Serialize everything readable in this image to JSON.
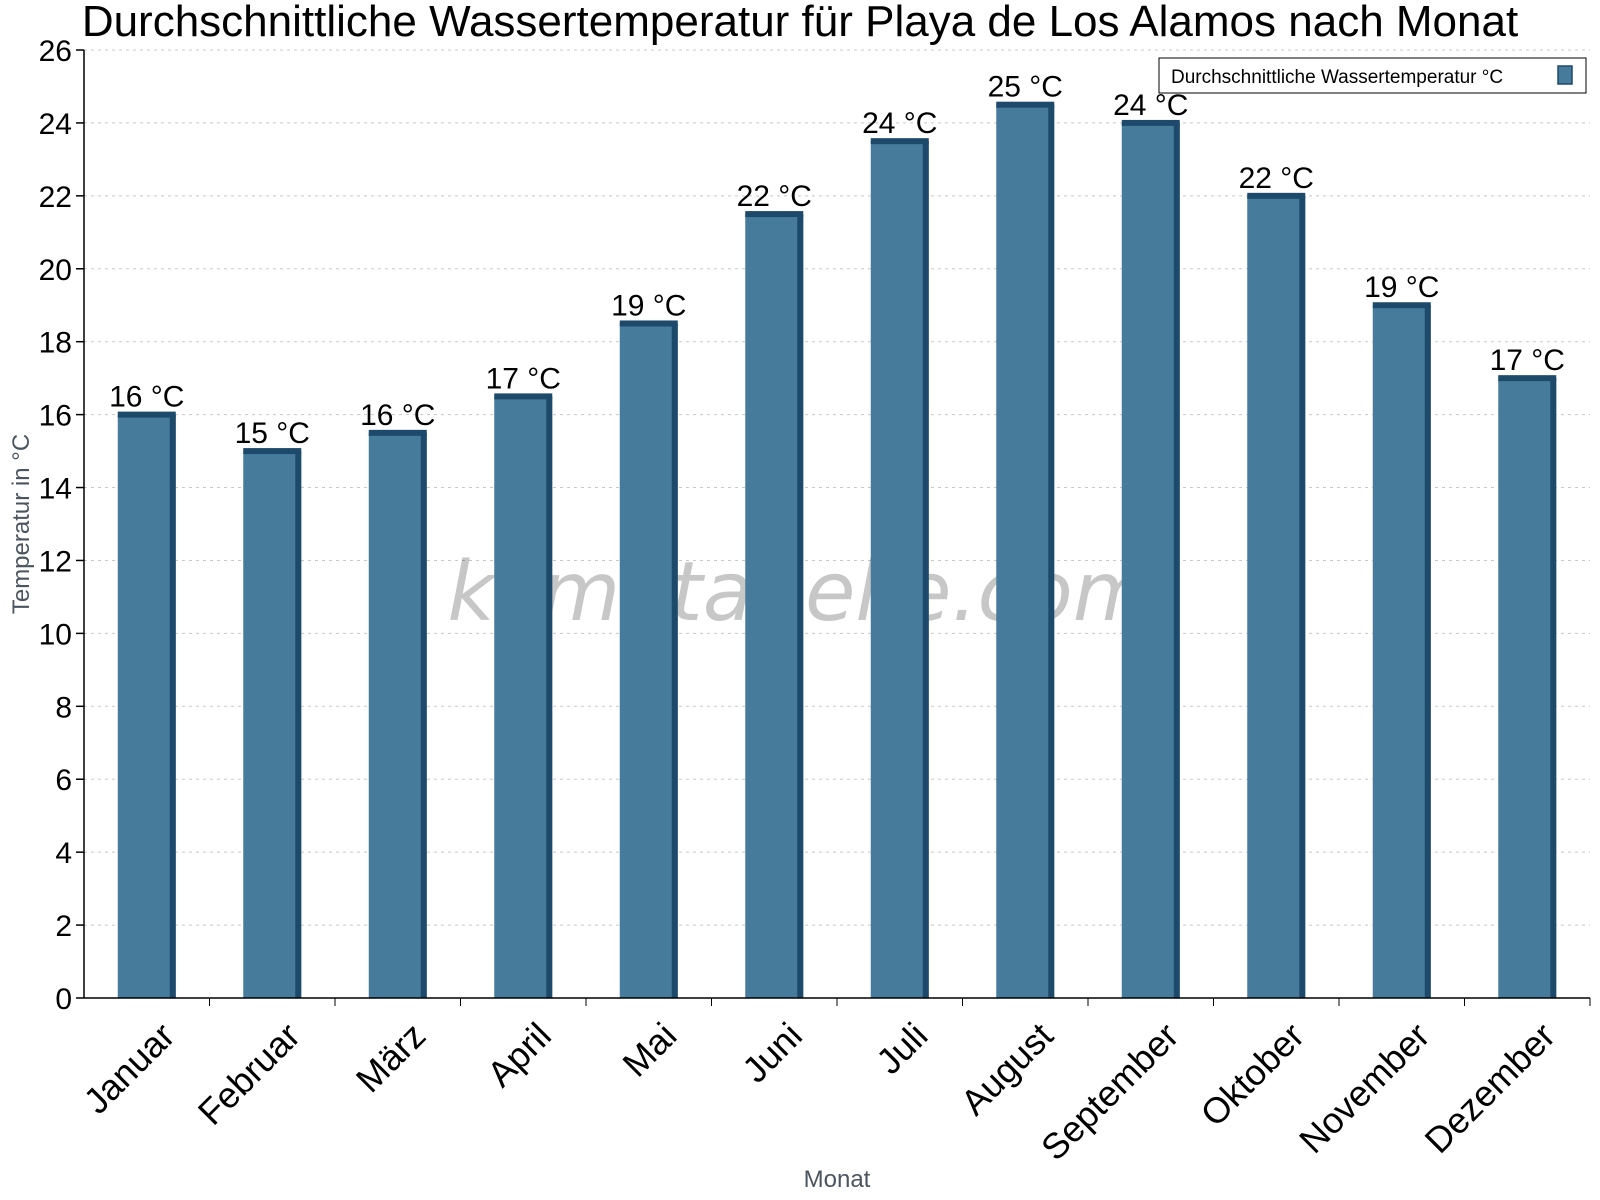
{
  "chart_data": {
    "type": "bar",
    "title": "Durchschnittliche Wassertemperatur für Playa de Los Alamos nach Monat",
    "xlabel": "Monat",
    "ylabel": "Temperatur in °C",
    "categories": [
      "Januar",
      "Februar",
      "März",
      "April",
      "Mai",
      "Juni",
      "Juli",
      "August",
      "September",
      "Oktober",
      "November",
      "Dezember"
    ],
    "series": [
      {
        "name": "Durchschnittliche Wassertemperatur °C",
        "values": [
          16,
          15,
          15.5,
          16.5,
          18.5,
          21.5,
          23.5,
          24.5,
          24,
          22,
          19,
          17
        ],
        "data_labels": [
          "16 °C",
          "15 °C",
          "16 °C",
          "17 °C",
          "19 °C",
          "22 °C",
          "24 °C",
          "25 °C",
          "24 °C",
          "22 °C",
          "19 °C",
          "17 °C"
        ],
        "color": "#467b9c",
        "side_color": "#1d4a6b"
      }
    ],
    "ylim": [
      0,
      26
    ],
    "yticks": [
      0,
      2,
      4,
      6,
      8,
      10,
      12,
      14,
      16,
      18,
      20,
      22,
      24,
      26
    ],
    "grid": true,
    "legend_position": "top-right"
  },
  "watermark": "klimatabelle.com"
}
